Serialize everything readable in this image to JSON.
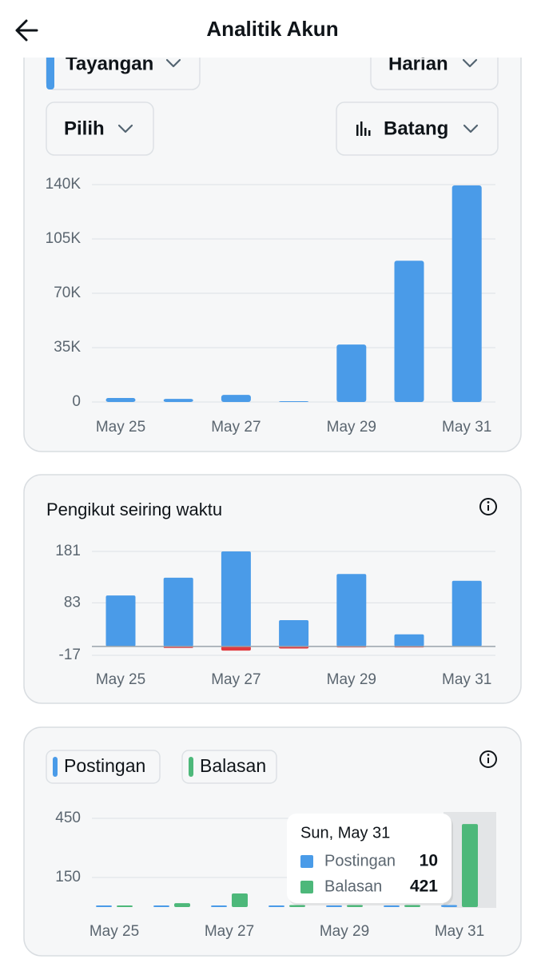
{
  "header": {
    "title": "Analitik Akun"
  },
  "controls": {
    "metric": "Tayangan",
    "period": "Harian",
    "select": "Pilih",
    "chart_style": "Batang"
  },
  "chart_data": [
    {
      "type": "bar",
      "categories": [
        "May 25",
        null,
        "May 27",
        null,
        "May 29",
        null,
        "May 31"
      ],
      "values": [
        2600,
        2000,
        4600,
        500,
        37000,
        91000,
        139500
      ],
      "color": "#4a9be8",
      "ylim": [
        0,
        140000
      ],
      "yticks": [
        0,
        {
          "value": 35000,
          "label": "35K"
        },
        {
          "value": 70000,
          "label": "70K"
        },
        {
          "value": 105000,
          "label": "105K"
        },
        {
          "value": 140000,
          "label": "140K"
        }
      ],
      "grid": true
    },
    {
      "type": "diverging_bar",
      "title": "Pengikut seiring waktu",
      "categories": [
        "May 25",
        null,
        "May 27",
        null,
        "May 29",
        null,
        "May 31"
      ],
      "series": [
        {
          "color": "#4a9be8",
          "values": [
            97,
            131,
            181,
            50,
            138,
            23,
            125
          ]
        },
        {
          "color": "#e0393e",
          "values": [
            -1,
            -3,
            -8,
            -4,
            -2,
            -2,
            0
          ]
        }
      ],
      "ylim": [
        -17,
        181
      ],
      "yticks": [
        -17,
        83,
        181
      ],
      "grid": true
    },
    {
      "type": "grouped_bar",
      "categories": [
        "May 25",
        null,
        "May 27",
        null,
        "May 29",
        null,
        "May 31"
      ],
      "series": [
        {
          "name": "Postingan",
          "color": "#4a9be8",
          "values": [
            5,
            5,
            5,
            5,
            5,
            5,
            10
          ]
        },
        {
          "name": "Balasan",
          "color": "#4db87a",
          "values": [
            8,
            20,
            69,
            10,
            10,
            10,
            421
          ]
        }
      ],
      "ylim": [
        0,
        450
      ],
      "yticks": [
        150,
        450
      ],
      "grid": true,
      "tooltip_title": "Sun, May 31"
    }
  ]
}
